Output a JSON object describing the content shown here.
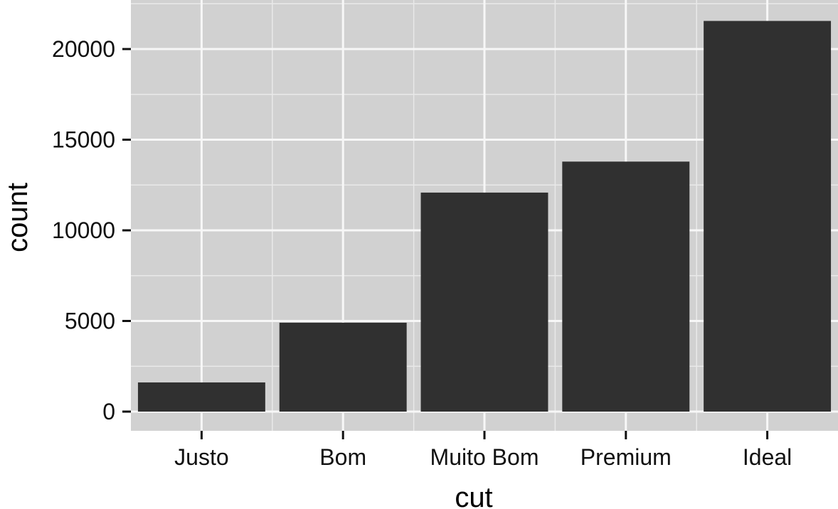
{
  "chart_data": {
    "type": "bar",
    "title": "",
    "xlabel": "cut",
    "ylabel": "count",
    "categories": [
      "Justo",
      "Bom",
      "Muito Bom",
      "Premium",
      "Ideal"
    ],
    "values": [
      1610,
      4906,
      12082,
      13791,
      21551
    ],
    "ylim": [
      0,
      22624
    ],
    "y_ticks": [
      0,
      5000,
      10000,
      15000,
      20000
    ],
    "y_tick_labels": [
      "0",
      "5000",
      "10000",
      "15000",
      "20000"
    ],
    "grid": true,
    "legend": "none",
    "colors": {
      "panel": "#d1d1d1",
      "grid": "#f7f7f7",
      "bar": "#303030"
    }
  }
}
